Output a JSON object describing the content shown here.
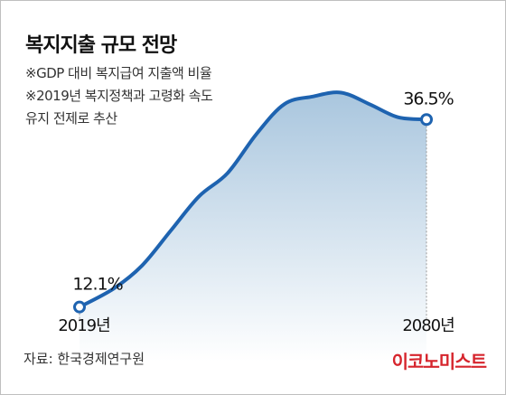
{
  "title": "복지지출 규모 전망",
  "notes": [
    "※GDP 대비 복지급여 지출액 비율",
    "※2019년 복지정책과 고령화 속도",
    "유지 전제로 추산"
  ],
  "source": "자료: 한국경제연구원",
  "publisher": "이코노미스트",
  "colors": {
    "line": "#1e63b0",
    "area_top": "#a9c6de",
    "area_bottom": "#ffffff",
    "guide": "#999999"
  },
  "chart_data": {
    "type": "area",
    "x": [
      2019,
      2025,
      2030,
      2035,
      2040,
      2045,
      2050,
      2055,
      2060,
      2065,
      2070,
      2075,
      2080
    ],
    "values": [
      12.1,
      14.5,
      17.5,
      22.0,
      26.5,
      29.5,
      34.5,
      38.5,
      39.5,
      40.0,
      38.5,
      36.8,
      36.5
    ],
    "start_label": "12.1%",
    "end_label": "36.5%",
    "x_tick_labels": [
      "2019년",
      "2080년"
    ],
    "ylim": [
      5,
      45
    ],
    "grid": false,
    "legend": "none"
  }
}
